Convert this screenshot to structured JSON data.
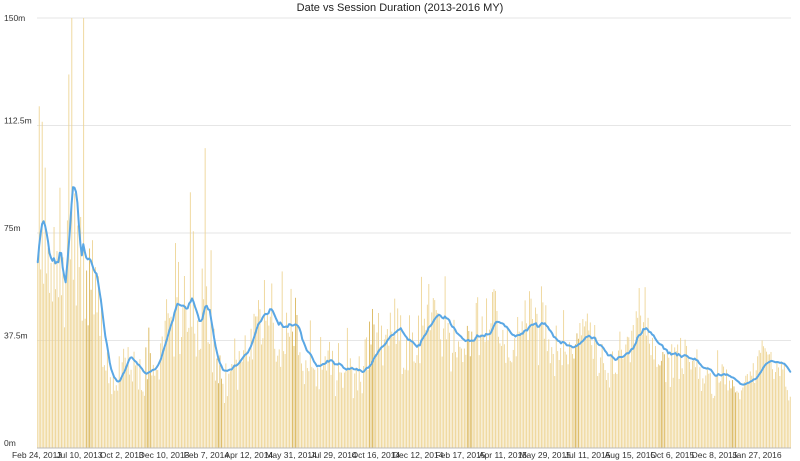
{
  "chart_data": {
    "type": "bar",
    "title": "Date vs Session Duration (2013-2016 MY)",
    "xlabel": "",
    "ylabel": "",
    "ylim": [
      0,
      150
    ],
    "y_unit_suffix": "m",
    "y_ticks": [
      "0m",
      "37.5m",
      "75m",
      "112.5m",
      "150m"
    ],
    "y_tick_values": [
      0,
      37.5,
      75,
      112.5,
      150
    ],
    "x_ticks": [
      "Feb 24, 2013",
      "Jul 10, 2013",
      "Oct 2, 2013",
      "Dec 10, 2013",
      "Feb 7, 2014",
      "Apr 12, 2014",
      "May 31, 2014",
      "Jul 29, 2014",
      "Oct 16, 2014",
      "Dec 12, 2014",
      "Feb 17, 2015",
      "Apr 11, 2015",
      "May 29, 2015",
      "Jul 11, 2015",
      "Aug 15, 2015",
      "Oct 6, 2015",
      "Dec 8, 2015",
      "Jan 27, 2016"
    ],
    "grid": true,
    "colors": {
      "bars": "#edd391",
      "bars_highlight": "#d9b455",
      "line": "#5aa7e4"
    },
    "series": [
      {
        "type": "bar",
        "values": [
          64.8,
          119.2,
          62.3,
          113.8,
          57.3,
          97.8,
          60.9,
          69.7,
          54.1,
          64.6,
          51.1,
          77.1,
          55.4,
          68.7,
          52.6,
          90.8,
          53.3,
          66.5,
          42.1,
          58.6,
          79.4,
          130.3,
          65.8,
          150.6,
          58.7,
          88.8,
          49.7,
          77.6,
          63.1,
          80.6,
          44.4,
          150.0,
          45.1,
          61.9,
          42.8,
          69.6,
          55.2,
          72.5,
          46.6,
          63.1,
          47.3,
          59.9,
          39.1,
          52.1,
          28.3,
          28.9,
          27.0,
          33.4,
          22.6,
          24.7,
          18.8,
          25.2,
          20.0,
          21.9,
          20.0,
          32.0,
          24.7,
          29.9,
          34.6,
          31.5,
          29.0,
          35.2,
          25.6,
          27.3,
          23.2,
          33.6,
          28.8,
          30.2,
          20.4,
          31.0,
          20.2,
          19.7,
          18.2,
          35.1,
          24.0,
          42.0,
          33.1,
          25.3,
          29.0,
          25.2,
          27.3,
          27.2,
          23.9,
          36.5,
          38.9,
          34.6,
          44.4,
          51.9,
          47.0,
          45.3,
          45.8,
          44.7,
          31.9,
          71.5,
          52.6,
          64.9,
          32.8,
          38.7,
          49.2,
          60.0,
          49.6,
          40.5,
          41.9,
          89.2,
          42.3,
          75.6,
          39.9,
          31.9,
          44.5,
          34.2,
          34.6,
          62.6,
          51.9,
          104.6,
          56.4,
          36.9,
          36.3,
          69.0,
          26.4,
          41.6,
          23.5,
          31.2,
          22.6,
          32.3,
          24.2,
          22.4,
          15.7,
          29.5,
          18.1,
          25.9,
          26.8,
          29.3,
          29.0,
          38.2,
          30.8,
          20.3,
          33.8,
          30.5,
          30.1,
          34.1,
          39.3,
          33.6,
          30.2,
          31.9,
          41.6,
          30.9,
          46.8,
          45.9,
          45.9,
          51.6,
          48.4,
          36.1,
          38.3,
          58.6,
          44.4,
          47.0,
          42.7,
          45.8,
          57.4,
          43.7,
          34.6,
          30.1,
          32.2,
          34.4,
          28.3,
          61.6,
          33.8,
          32.8,
          47.2,
          40.2,
          38.8,
          55.5,
          40.6,
          35.6,
          52.4,
          46.4,
          32.4,
          33.4,
          29.5,
          26.9,
          22.3,
          30.6,
          27.9,
          26.8,
          44.5,
          28.3,
          27.8,
          27.3,
          21.5,
          28.0,
          20.5,
          38.7,
          27.3,
          29.7,
          32.0,
          27.0,
          34.0,
          37.0,
          25.5,
          33.9,
          30.3,
          18.1,
          23.6,
          36.6,
          26.4,
          26.3,
          21.0,
          26.3,
          26.8,
          41.9,
          28.0,
          31.3,
          28.5,
          17.4,
          26.0,
          28.1,
          20.1,
          32.0,
          23.1,
          19.1,
          28.6,
          37.9,
          38.6,
          27.2,
          44.1,
          36.1,
          48.5,
          43.1,
          32.8,
          40.3,
          47.1,
          35.1,
          42.7,
          28.8,
          37.9,
          39.5,
          41.5,
          35.7,
          47.2,
          40.6,
          38.9,
          52.1,
          36.3,
          48.7,
          37.3,
          46.3,
          25.8,
          28.0,
          27.3,
          38.5,
          27.1,
          46.3,
          37.2,
          40.3,
          30.2,
          29.7,
          32.4,
          46.2,
          29.6,
          59.7,
          42.7,
          45.1,
          41.1,
          50.0,
          57.2,
          41.1,
          47.3,
          52.3,
          51.6,
          48.1,
          47.1,
          46.0,
          37.9,
          31.9,
          41.7,
          59.9,
          37.9,
          43.6,
          40.2,
          26.7,
          33.2,
          44.7,
          33.5,
          31.6,
          37.2,
          35.3,
          34.7,
          30.0,
          34.7,
          32.5,
          42.6,
          40.8,
          32.0,
          40.6,
          37.3,
          38.6,
          50.6,
          52.6,
          32.4,
          39.6,
          45.9,
          39.0,
          37.1,
          52.2,
          37.5,
          41.3,
          43.5,
          54.4,
          55.4,
          54.8,
          47.8,
          38.8,
          36.5,
          35.6,
          41.2,
          36.2,
          29.7,
          41.3,
          31.6,
          30.4,
          29.9,
          34.2,
          38.3,
          32.0,
          45.7,
          40.6,
          39.7,
          44.2,
          39.8,
          51.5,
          43.5,
          37.6,
          54.7,
          52.1,
          45.0,
          43.0,
          49.0,
          46.8,
          28.9,
          43.0,
          56.4,
          50.8,
          38.1,
          49.8,
          33.8,
          37.9,
          29.6,
          35.2,
          32.8,
          25.1,
          42.7,
          33.8,
          30.7,
          34.9,
          28.9,
          48.1,
          33.6,
          32.6,
          29.2,
          36.9,
          35.3,
          32.8,
          31.2,
          36.2,
          40.0,
          38.1,
          43.6,
          39.3,
          45.0,
          42.4,
          44.2,
          46.9,
          41.0,
          43.8,
          35.9,
          31.1,
          42.9,
          38.5,
          25.1,
          26.2,
          31.6,
          36.3,
          29.6,
          27.2,
          23.7,
          26.2,
          21.1,
          32.9,
          33.7,
          25.8,
          26.3,
          25.8,
          34.0,
          40.6,
          34.3,
          31.2,
          32.3,
          36.1,
          38.8,
          38.6,
          29.9,
          40.9,
          42.9,
          36.4,
          47.7,
          45.4,
          55.8,
          46.2,
          39.5,
          43.9,
          56.1,
          39.2,
          45.4,
          36.4,
          32.4,
          38.4,
          30.9,
          35.6,
          28.3,
          29.2,
          28.8,
          30.4,
          33.5,
          32.7,
          23.0,
          33.4,
          31.5,
          21.3,
          36.2,
          24.5,
          35.1,
          33.8,
          36.1,
          24.1,
          38.4,
          27.8,
          25.8,
          37.8,
          35.6,
          31.8,
          30.0,
          27.4,
          30.4,
          30.8,
          28.2,
          34.4,
          24.1,
          28.2,
          19.9,
          24.3,
          22.5,
          25.3,
          28.3,
          25.9,
          26.2,
          18.9,
          17.4,
          18.2,
          25.2,
          34.1,
          22.8,
          23.3,
          29.2,
          28.4,
          22.2,
          27.4,
          20.1,
          23.5,
          20.8,
          23.7,
          21.5,
          19.4,
          19.8,
          19.3,
          17.0,
          20.1,
          21.1,
          23.0,
          25.2,
          25.8,
          23.2,
          26.7,
          25.2,
          29.6,
          22.7,
          27.1,
          32.0,
          34.1,
          33.2,
          37.5,
          35.5,
          34.8,
          33.6,
          32.6,
          32.7,
          33.5,
          27.5,
          24.1,
          26.5,
          29.9,
          28.1,
          25.1,
          30.2,
          27.4,
          29.4,
          21.4,
          20.2,
          16.6,
          17.9
        ]
      },
      {
        "type": "line",
        "values": [
          64.8,
          70.7,
          74.9,
          78.2,
          79.1,
          77.6,
          75.1,
          72.1,
          68.0,
          66.4,
          65.3,
          66.2,
          64.4,
          64.9,
          64.8,
          68.1,
          68.0,
          62.9,
          60.0,
          57.8,
          63.7,
          70.0,
          76.9,
          84.9,
          91.0,
          90.8,
          89.4,
          85.5,
          77.8,
          71.3,
          67.2,
          71.1,
          68.5,
          66.4,
          65.8,
          66.1,
          65.5,
          64.0,
          62.4,
          61.3,
          60.8,
          58.1,
          54.7,
          51.5,
          47.3,
          43.1,
          38.9,
          36.4,
          33.3,
          29.8,
          27.5,
          26.1,
          24.7,
          24.1,
          23.3,
          23.2,
          23.5,
          24.6,
          25.8,
          26.6,
          27.9,
          29.2,
          30.6,
          31.5,
          31.6,
          31.0,
          30.4,
          30.0,
          29.2,
          28.9,
          28.2,
          27.6,
          26.7,
          26.2,
          25.9,
          26.2,
          26.5,
          26.7,
          27.2,
          27.3,
          27.5,
          28.2,
          29.0,
          30.1,
          31.3,
          33.2,
          34.8,
          36.4,
          38.1,
          40.0,
          41.7,
          43.4,
          44.6,
          47.1,
          48.7,
          50.3,
          50.1,
          49.8,
          49.6,
          49.7,
          49.3,
          48.6,
          48.7,
          50.4,
          51.0,
          52.2,
          51.0,
          49.3,
          47.9,
          46.3,
          44.3,
          44.3,
          45.0,
          47.4,
          49.3,
          49.6,
          48.3,
          48.2,
          44.8,
          41.8,
          38.4,
          35.5,
          33.2,
          31.0,
          29.6,
          28.6,
          27.3,
          27.0,
          27.0,
          26.9,
          27.2,
          27.4,
          27.4,
          28.1,
          28.8,
          28.7,
          29.1,
          29.6,
          30.4,
          31.1,
          31.8,
          32.5,
          32.8,
          33.3,
          34.4,
          35.4,
          36.8,
          38.3,
          39.9,
          41.6,
          43.1,
          43.8,
          44.3,
          45.5,
          46.3,
          46.8,
          46.7,
          47.0,
          48.4,
          48.4,
          47.7,
          46.5,
          45.3,
          44.2,
          43.0,
          43.8,
          43.1,
          42.2,
          42.2,
          42.4,
          42.2,
          43.2,
          43.1,
          42.7,
          42.8,
          43.1,
          43.0,
          42.6,
          41.8,
          40.3,
          37.9,
          36.8,
          35.5,
          34.1,
          33.5,
          33.1,
          32.4,
          31.3,
          30.1,
          29.4,
          28.5,
          28.7,
          28.6,
          28.9,
          29.3,
          29.3,
          29.6,
          30.4,
          30.1,
          30.6,
          30.6,
          30.1,
          29.2,
          29.2,
          29.1,
          29.5,
          29.2,
          28.8,
          28.0,
          27.7,
          27.3,
          27.7,
          27.5,
          27.8,
          27.9,
          27.5,
          27.4,
          27.6,
          27.1,
          27.3,
          26.9,
          26.5,
          26.7,
          27.4,
          28.0,
          28.0,
          28.7,
          29.2,
          30.4,
          31.5,
          32.2,
          32.9,
          33.9,
          34.5,
          35.2,
          35.5,
          36.0,
          36.6,
          37.6,
          38.2,
          39.0,
          39.4,
          39.5,
          40.2,
          40.5,
          41.1,
          41.3,
          41.8,
          40.8,
          40.0,
          39.2,
          38.6,
          37.7,
          37.8,
          37.3,
          37.1,
          36.5,
          35.9,
          35.3,
          35.9,
          35.8,
          37.5,
          38.2,
          39.1,
          39.7,
          40.7,
          42.1,
          42.5,
          43.1,
          44.0,
          44.9,
          45.6,
          46.1,
          46.5,
          46.2,
          45.5,
          45.2,
          45.9,
          45.3,
          45.1,
          44.6,
          43.2,
          42.3,
          42.1,
          41.3,
          40.2,
          39.8,
          39.3,
          38.9,
          38.2,
          37.8,
          37.3,
          37.5,
          37.7,
          37.3,
          37.5,
          37.4,
          37.5,
          38.3,
          39.3,
          38.9,
          38.9,
          39.2,
          39.2,
          39.0,
          39.8,
          39.6,
          39.7,
          39.9,
          41.0,
          42.2,
          43.3,
          44.0,
          44.0,
          43.9,
          43.6,
          43.5,
          43.2,
          42.4,
          42.3,
          41.6,
          40.9,
          40.1,
          39.5,
          39.4,
          38.9,
          39.3,
          39.4,
          39.4,
          39.9,
          39.9,
          40.8,
          41.1,
          41.0,
          41.9,
          42.6,
          43.0,
          43.0,
          43.3,
          43.5,
          42.3,
          42.3,
          43.0,
          43.6,
          43.3,
          43.5,
          42.7,
          42.3,
          41.3,
          40.8,
          40.0,
          38.8,
          38.6,
          38.0,
          37.4,
          37.2,
          36.5,
          37.0,
          36.9,
          36.5,
          35.8,
          35.8,
          35.7,
          35.5,
          35.1,
          35.2,
          35.5,
          35.7,
          36.2,
          36.4,
          37.0,
          37.4,
          38.0,
          38.7,
          38.8,
          39.2,
          38.8,
          38.2,
          38.5,
          38.5,
          37.3,
          36.4,
          35.9,
          35.9,
          35.4,
          34.8,
          33.9,
          33.3,
          32.3,
          32.3,
          32.4,
          31.8,
          31.3,
          30.7,
          30.9,
          31.6,
          31.8,
          31.7,
          31.8,
          32.1,
          32.7,
          33.1,
          33.0,
          33.7,
          34.5,
          34.6,
          35.7,
          36.6,
          38.5,
          39.3,
          39.5,
          40.1,
          41.5,
          41.4,
          41.8,
          41.3,
          40.5,
          40.4,
          39.6,
          39.3,
          38.3,
          37.5,
          36.8,
          36.3,
          36.1,
          35.8,
          34.6,
          34.5,
          34.2,
          33.0,
          33.3,
          32.6,
          32.8,
          32.9,
          33.1,
          32.3,
          32.8,
          32.3,
          31.7,
          32.1,
          32.4,
          32.3,
          32.0,
          31.5,
          31.3,
          31.2,
          30.9,
          31.2,
          30.7,
          30.5,
          29.6,
          29.1,
          28.4,
          28.0,
          27.9,
          27.7,
          27.8,
          27.5,
          27.3,
          26.6,
          25.8,
          25.2,
          25.2,
          25.8,
          25.5,
          25.3,
          25.6,
          25.8,
          25.5,
          25.7,
          25.3,
          25.1,
          24.7,
          24.6,
          24.3,
          23.8,
          23.4,
          23.0,
          22.4,
          22.2,
          22.1,
          22.2,
          22.4,
          22.7,
          22.8,
          23.2,
          23.4,
          23.9,
          24.0,
          24.3,
          25.0,
          25.8,
          26.5,
          27.4,
          28.3,
          29.0,
          29.5,
          29.8,
          30.1,
          30.4,
          30.3,
          30.1,
          29.9,
          30.0,
          29.9,
          29.7,
          29.8,
          29.5,
          29.4,
          28.8,
          28.2,
          27.4,
          26.6
        ]
      }
    ]
  }
}
